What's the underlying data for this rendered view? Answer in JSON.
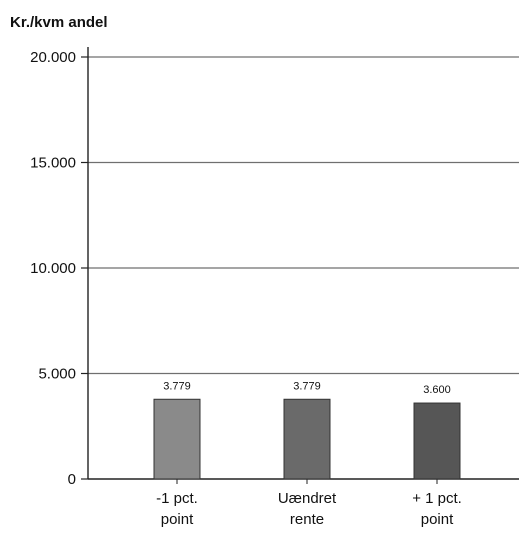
{
  "chart_data": {
    "type": "bar",
    "title": "Kr./kvm andel",
    "categories": [
      [
        "-1 pct.",
        "point"
      ],
      [
        "Uændret",
        "rente"
      ],
      [
        "+ 1 pct.",
        "point"
      ]
    ],
    "values": [
      3779,
      3779,
      3600
    ],
    "data_labels": [
      "3.779",
      "3.779",
      "3.600"
    ],
    "yticks": [
      0,
      5000,
      10000,
      15000,
      20000
    ],
    "ytick_labels": [
      "0",
      "5.000",
      "10.000",
      "15.000",
      "20.000"
    ],
    "ylim": [
      0,
      20000
    ],
    "grid": true,
    "colors": {
      "bars": [
        "#8a8a8a",
        "#6a6a6a",
        "#565656"
      ],
      "grid": "#6f6f6f",
      "axis": "#222222",
      "text": "#111111"
    }
  }
}
